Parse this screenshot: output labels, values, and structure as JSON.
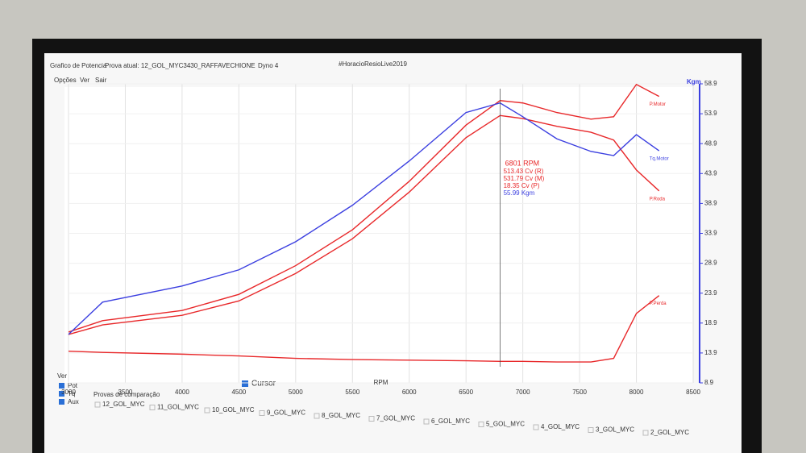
{
  "window": {
    "app_title": "Grafico de Potencia",
    "test": "Prova atual: 12_GOL_MYC3430_RAFFAVECHIONE",
    "dyno": "Dyno 4",
    "tag": "#HoracioResioLive2019",
    "menu": [
      "Opções",
      "Ver",
      "Sair"
    ],
    "view_label": "Ver",
    "view_options": [
      "Pot",
      "Tq",
      "Aux"
    ],
    "cursor_toggle": "Cursor",
    "comparison_title": "Provas de comparação",
    "comparison_runs": [
      "12_GOL_MYC",
      "11_GOL_MYC",
      "10_GOL_MYC",
      "9_GOL_MYC",
      "8_GOL_MYC",
      "7_GOL_MYC",
      "6_GOL_MYC",
      "5_GOL_MYC",
      "4_GOL_MYC",
      "3_GOL_MYC",
      "2_GOL_MYC"
    ]
  },
  "chart_data": {
    "type": "line",
    "x_label": "RPM",
    "y2_label": "Kgm",
    "x": [
      3000,
      3300,
      4000,
      4500,
      5000,
      5500,
      6000,
      6500,
      6800,
      7000,
      7300,
      7600,
      7800,
      8000,
      8200
    ],
    "xlim": [
      3000,
      8500
    ],
    "xticks": [
      3000,
      3500,
      4000,
      4500,
      5000,
      5500,
      6000,
      6500,
      7000,
      7500,
      8000,
      8500
    ],
    "ylim": [
      8.9,
      58.9
    ],
    "yticks": [
      8.9,
      13.9,
      18.9,
      23.9,
      28.9,
      33.9,
      38.9,
      43.9,
      48.9,
      53.9,
      58.9
    ],
    "grid": true,
    "series": [
      {
        "name": "P.Motor",
        "color": "#e8282a",
        "values": [
          17.4,
          19.3,
          21.0,
          23.7,
          28.5,
          34.5,
          42.6,
          52.0,
          56.1,
          55.7,
          54.1,
          53.0,
          53.4,
          58.8,
          56.8
        ]
      },
      {
        "name": "P.Roda",
        "color": "#e8282a",
        "values": [
          17.0,
          18.6,
          20.2,
          22.6,
          27.2,
          33.0,
          40.8,
          49.9,
          53.6,
          53.1,
          51.8,
          50.8,
          49.5,
          44.5,
          41.0
        ]
      },
      {
        "name": "Tq.Motor",
        "color": "#3b3fe0",
        "values": [
          17.0,
          22.4,
          25.1,
          27.8,
          32.5,
          38.6,
          46.0,
          54.1,
          55.7,
          53.4,
          49.7,
          47.6,
          46.9,
          50.4,
          47.7
        ]
      },
      {
        "name": "P.Perda",
        "color": "#e8282a",
        "values": [
          14.2,
          14.0,
          13.7,
          13.4,
          13.0,
          12.8,
          12.7,
          12.6,
          12.5,
          12.5,
          12.4,
          12.4,
          13.0,
          20.5,
          23.5
        ]
      }
    ],
    "cursor": {
      "x": 6801,
      "x_label": "6801 RPM",
      "readout": [
        "513.43 Cv (R)",
        "531.79 Cv (M)",
        "18.35 Cv (P)",
        "55.99 Kgm"
      ]
    }
  }
}
